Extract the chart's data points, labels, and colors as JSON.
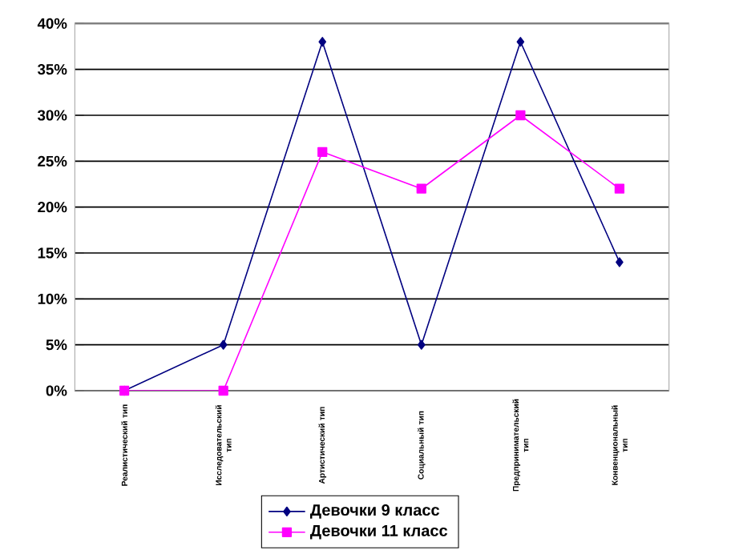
{
  "chart_data": {
    "type": "line",
    "categories": [
      "Реалистический тип",
      "Исследовательский тип",
      "Артистический тип",
      "Социальный тип",
      "Предпринимательский тип",
      "Конвенциональный тип"
    ],
    "series": [
      {
        "name": "Девочки 9 класс",
        "color": "#000080",
        "marker": "diamond",
        "values": [
          0,
          5,
          38,
          5,
          38,
          14
        ]
      },
      {
        "name": "Девочки 11 класс",
        "color": "#ff00ff",
        "marker": "square",
        "values": [
          0,
          0,
          26,
          22,
          30,
          22
        ]
      }
    ],
    "ylim": [
      0,
      40
    ],
    "yticks": [
      {
        "value": 0,
        "label": "0%"
      },
      {
        "value": 5,
        "label": "5%"
      },
      {
        "value": 10,
        "label": "10%"
      },
      {
        "value": 15,
        "label": "15%"
      },
      {
        "value": 20,
        "label": "20%"
      },
      {
        "value": 25,
        "label": "25%"
      },
      {
        "value": 30,
        "label": "30%"
      },
      {
        "value": 35,
        "label": "35%"
      },
      {
        "value": 40,
        "label": "40%"
      }
    ],
    "grid": "y",
    "legend": "bottom",
    "line_style": "solid"
  }
}
